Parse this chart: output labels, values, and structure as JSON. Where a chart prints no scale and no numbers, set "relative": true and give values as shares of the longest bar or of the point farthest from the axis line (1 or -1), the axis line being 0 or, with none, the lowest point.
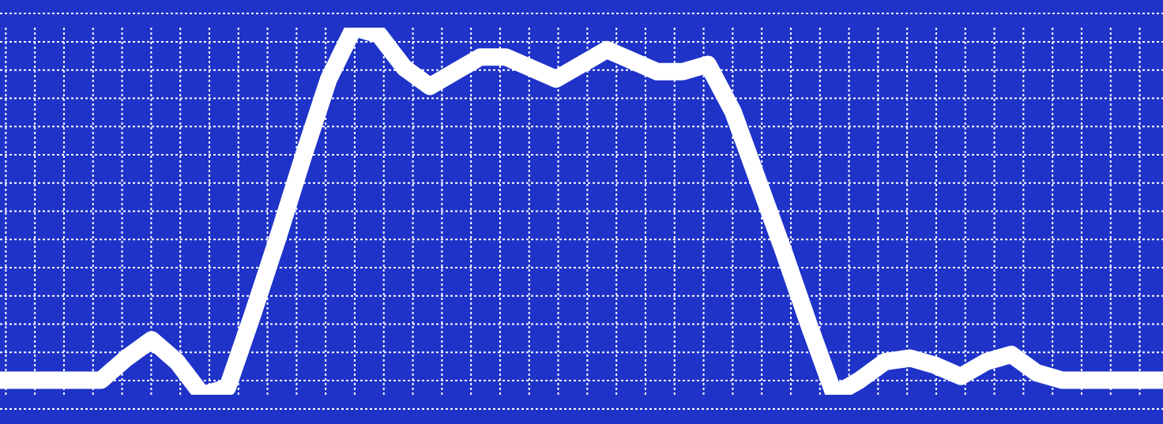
{
  "chart_data": {
    "type": "line",
    "relative": true,
    "grid": true,
    "line_style": "solid",
    "categories": [
      null,
      null,
      null,
      null,
      null,
      null,
      null,
      null,
      null,
      null,
      null,
      null,
      null,
      null,
      null,
      null,
      null,
      null,
      null,
      null,
      null,
      null,
      null,
      null,
      null,
      null,
      null,
      null,
      null,
      null,
      null,
      null,
      null,
      null,
      null,
      null,
      null,
      null,
      null,
      null,
      null,
      null,
      null,
      null,
      null,
      null,
      null
    ],
    "series": [
      {
        "color": "#ffffff",
        "values": [
          0.04,
          0.04,
          0.04,
          0.04,
          0.04,
          0.1,
          0.15,
          0.09,
          0,
          0.02,
          0.22,
          0.43,
          0.65,
          0.86,
          1,
          0.98,
          0.89,
          0.84,
          0.88,
          0.92,
          0.92,
          0.89,
          0.86,
          0.9,
          0.94,
          0.91,
          0.88,
          0.88,
          0.9,
          0.77,
          0.58,
          0.39,
          0.19,
          0,
          0.04,
          0.09,
          0.1,
          0.08,
          0.05,
          0.09,
          0.11,
          0.06,
          0.04,
          0.04,
          0.04,
          0.04,
          0.04
        ]
      }
    ]
  }
}
